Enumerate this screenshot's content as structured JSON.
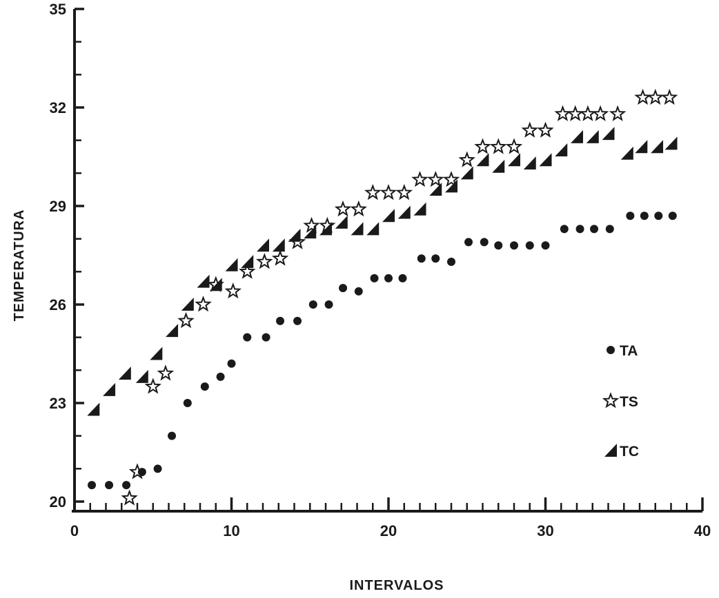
{
  "chart_data": {
    "type": "scatter",
    "title": "",
    "xlabel": "INTERVALOS",
    "ylabel": "TEMPERATURA",
    "xlim": [
      0,
      40
    ],
    "ylim": [
      20,
      35
    ],
    "x_ticks": [
      0,
      10,
      20,
      30,
      40
    ],
    "y_ticks": [
      20,
      23,
      26,
      29,
      32,
      35
    ],
    "x_tick_labels": [
      "0",
      "10",
      "20",
      "30",
      "40"
    ],
    "y_tick_labels": [
      "20",
      "23",
      "26",
      "29",
      "32",
      "35"
    ],
    "grid": false,
    "legend_position": "right",
    "colors": {
      "ink": "#1a1a1a",
      "background": "#ffffff"
    },
    "series": [
      {
        "name": "TA",
        "marker": "circle",
        "points": [
          [
            1.1,
            20.5
          ],
          [
            2.2,
            20.5
          ],
          [
            3.3,
            20.5
          ],
          [
            4.3,
            20.9
          ],
          [
            5.3,
            21.0
          ],
          [
            6.2,
            22.0
          ],
          [
            7.2,
            23.0
          ],
          [
            8.3,
            23.5
          ],
          [
            9.3,
            23.8
          ],
          [
            10.0,
            24.2
          ],
          [
            11.0,
            25.0
          ],
          [
            12.2,
            25.0
          ],
          [
            13.1,
            25.5
          ],
          [
            14.2,
            25.5
          ],
          [
            15.2,
            26.0
          ],
          [
            16.2,
            26.0
          ],
          [
            17.1,
            26.5
          ],
          [
            18.1,
            26.4
          ],
          [
            19.1,
            26.8
          ],
          [
            20.0,
            26.8
          ],
          [
            20.9,
            26.8
          ],
          [
            22.1,
            27.4
          ],
          [
            23.0,
            27.4
          ],
          [
            24.0,
            27.3
          ],
          [
            25.1,
            27.9
          ],
          [
            26.1,
            27.9
          ],
          [
            27.0,
            27.8
          ],
          [
            28.0,
            27.8
          ],
          [
            29.0,
            27.8
          ],
          [
            30.0,
            27.8
          ],
          [
            31.2,
            28.3
          ],
          [
            32.2,
            28.3
          ],
          [
            33.1,
            28.3
          ],
          [
            34.1,
            28.3
          ],
          [
            35.4,
            28.7
          ],
          [
            36.3,
            28.7
          ],
          [
            37.2,
            28.7
          ],
          [
            38.1,
            28.7
          ]
        ]
      },
      {
        "name": "TS",
        "marker": "star",
        "points": [
          [
            3.5,
            20.1
          ],
          [
            4.0,
            20.9
          ],
          [
            5.0,
            23.5
          ],
          [
            5.8,
            23.9
          ],
          [
            7.1,
            25.5
          ],
          [
            8.2,
            26.0
          ],
          [
            9.0,
            26.6
          ],
          [
            10.1,
            26.4
          ],
          [
            11.0,
            27.0
          ],
          [
            12.1,
            27.3
          ],
          [
            13.1,
            27.4
          ],
          [
            14.2,
            27.9
          ],
          [
            15.1,
            28.4
          ],
          [
            16.1,
            28.4
          ],
          [
            17.1,
            28.9
          ],
          [
            18.1,
            28.9
          ],
          [
            19.0,
            29.4
          ],
          [
            20.0,
            29.4
          ],
          [
            21.0,
            29.4
          ],
          [
            22.0,
            29.8
          ],
          [
            23.0,
            29.8
          ],
          [
            24.0,
            29.8
          ],
          [
            25.0,
            30.4
          ],
          [
            26.0,
            30.8
          ],
          [
            27.0,
            30.8
          ],
          [
            28.0,
            30.8
          ],
          [
            29.0,
            31.3
          ],
          [
            30.0,
            31.3
          ],
          [
            31.1,
            31.8
          ],
          [
            31.9,
            31.8
          ],
          [
            32.7,
            31.8
          ],
          [
            33.5,
            31.8
          ],
          [
            34.6,
            31.8
          ],
          [
            36.2,
            32.3
          ],
          [
            37.0,
            32.3
          ],
          [
            37.9,
            32.3
          ]
        ]
      },
      {
        "name": "TC",
        "marker": "triangle",
        "points": [
          [
            1.2,
            22.8
          ],
          [
            2.2,
            23.4
          ],
          [
            3.2,
            23.9
          ],
          [
            4.3,
            23.8
          ],
          [
            5.2,
            24.5
          ],
          [
            6.2,
            25.2
          ],
          [
            7.2,
            26.0
          ],
          [
            8.2,
            26.7
          ],
          [
            9.0,
            26.6
          ],
          [
            10.0,
            27.2
          ],
          [
            11.0,
            27.3
          ],
          [
            12.0,
            27.8
          ],
          [
            13.0,
            27.8
          ],
          [
            14.0,
            28.1
          ],
          [
            15.0,
            28.2
          ],
          [
            16.0,
            28.3
          ],
          [
            17.0,
            28.5
          ],
          [
            18.0,
            28.3
          ],
          [
            19.0,
            28.3
          ],
          [
            20.0,
            28.7
          ],
          [
            21.0,
            28.8
          ],
          [
            22.0,
            28.9
          ],
          [
            23.0,
            29.5
          ],
          [
            24.0,
            29.6
          ],
          [
            25.0,
            30.0
          ],
          [
            26.0,
            30.4
          ],
          [
            27.0,
            30.2
          ],
          [
            28.0,
            30.4
          ],
          [
            29.0,
            30.3
          ],
          [
            30.0,
            30.4
          ],
          [
            31.0,
            30.7
          ],
          [
            32.0,
            31.1
          ],
          [
            33.0,
            31.1
          ],
          [
            34.0,
            31.2
          ],
          [
            35.2,
            30.6
          ],
          [
            36.1,
            30.8
          ],
          [
            37.1,
            30.8
          ],
          [
            38.0,
            30.9
          ]
        ]
      }
    ]
  }
}
